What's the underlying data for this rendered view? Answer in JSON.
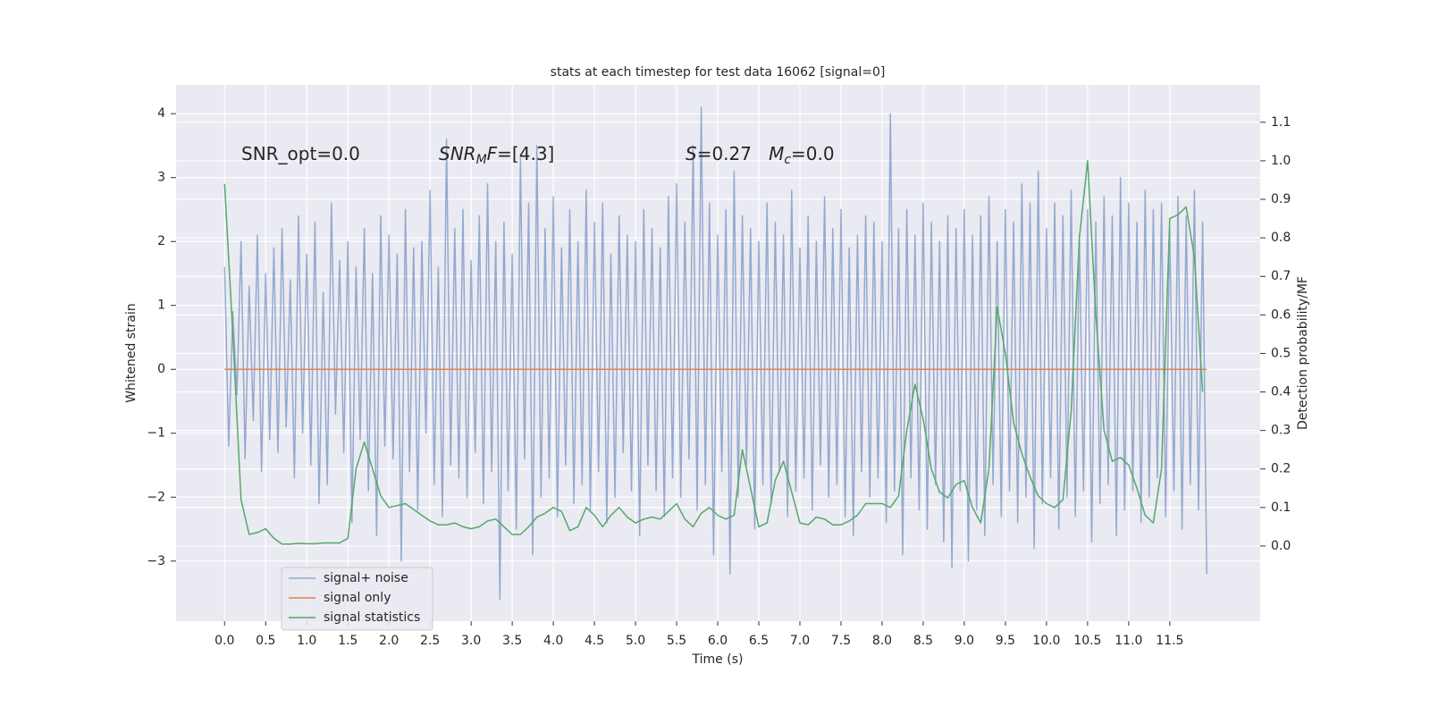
{
  "chart_data": {
    "type": "line",
    "title": "stats at each timestep for test data 16062 [signal=0]",
    "xlabel": "Time (s)",
    "ylabel": "Whitened strain",
    "y2label": "Detection probability/MF",
    "annotations": [
      [
        {
          "text": "SNR_opt=0.0"
        }
      ],
      [
        {
          "text": "SNR",
          "italic": true
        },
        {
          "text": "M",
          "italic": true,
          "sub": true
        },
        {
          "text": "F",
          "italic": true
        },
        {
          "text": "=[4.3]"
        }
      ],
      [
        {
          "text": "S",
          "italic": true
        },
        {
          "text": "=0.27   "
        },
        {
          "text": "M",
          "italic": true
        },
        {
          "text": "c",
          "italic": true,
          "sub": true
        },
        {
          "text": "=0.0"
        }
      ]
    ],
    "xlim": [
      -0.59,
      12.6
    ],
    "ylim": [
      -3.94,
      4.45
    ],
    "y2lim": [
      -0.195,
      1.197
    ],
    "xticks": [
      {
        "value": 0,
        "label": "0.0"
      },
      0.5,
      {
        "value": 1,
        "label": "1.0"
      },
      1.5,
      {
        "value": 2,
        "label": "2.0"
      },
      2.5,
      {
        "value": 3,
        "label": "3.0"
      },
      3.5,
      {
        "value": 4,
        "label": "4.0"
      },
      4.5,
      {
        "value": 5,
        "label": "5.0"
      },
      5.5,
      {
        "value": 6,
        "label": "6.0"
      },
      6.5,
      {
        "value": 7,
        "label": "7.0"
      },
      7.5,
      {
        "value": 8,
        "label": "8.0"
      },
      8.5,
      {
        "value": 9,
        "label": "9.0"
      },
      9.5,
      {
        "value": 10,
        "label": "10.0"
      },
      10.5,
      {
        "value": 11,
        "label": "11.0"
      },
      11.5
    ],
    "yticks": [
      {
        "value": -3,
        "label": "−3"
      },
      {
        "value": -2,
        "label": "−2"
      },
      {
        "value": -1,
        "label": "−1"
      },
      0,
      1,
      2,
      3,
      4
    ],
    "y2ticks": [
      {
        "value": 0,
        "label": "0.0"
      },
      0.1,
      0.2,
      0.3,
      0.4,
      0.5,
      0.6,
      0.7,
      0.8,
      0.9,
      {
        "value": 1,
        "label": "1.0"
      },
      1.1
    ],
    "grid": true,
    "legend": "lower left",
    "series": [
      {
        "name": "signal+ noise",
        "color": "#4c72b0",
        "alpha": 0.55,
        "axis": "y",
        "x": [
          0,
          0.05,
          0.1,
          0.15,
          0.2,
          0.25,
          0.3,
          0.35,
          0.4,
          0.45,
          0.5,
          0.55,
          0.6,
          0.65,
          0.7,
          0.75,
          0.8,
          0.85,
          0.9,
          0.95,
          1,
          1.05,
          1.1,
          1.15,
          1.2,
          1.25,
          1.3,
          1.35,
          1.4,
          1.45,
          1.5,
          1.55,
          1.6,
          1.65,
          1.7,
          1.75,
          1.8,
          1.85,
          1.9,
          1.95,
          2,
          2.05,
          2.1,
          2.15,
          2.2,
          2.25,
          2.3,
          2.35,
          2.4,
          2.45,
          2.5,
          2.55,
          2.6,
          2.65,
          2.7,
          2.75,
          2.8,
          2.85,
          2.9,
          2.95,
          3,
          3.05,
          3.1,
          3.15,
          3.2,
          3.25,
          3.3,
          3.35,
          3.4,
          3.45,
          3.5,
          3.55,
          3.6,
          3.65,
          3.7,
          3.75,
          3.8,
          3.85,
          3.9,
          3.95,
          4,
          4.05,
          4.1,
          4.15,
          4.2,
          4.25,
          4.3,
          4.35,
          4.4,
          4.45,
          4.5,
          4.55,
          4.6,
          4.65,
          4.7,
          4.75,
          4.8,
          4.85,
          4.9,
          4.95,
          5,
          5.05,
          5.1,
          5.15,
          5.2,
          5.25,
          5.3,
          5.35,
          5.4,
          5.45,
          5.5,
          5.55,
          5.6,
          5.65,
          5.7,
          5.75,
          5.8,
          5.85,
          5.9,
          5.95,
          6,
          6.05,
          6.1,
          6.15,
          6.2,
          6.25,
          6.3,
          6.35,
          6.4,
          6.45,
          6.5,
          6.55,
          6.6,
          6.65,
          6.7,
          6.75,
          6.8,
          6.85,
          6.9,
          6.95,
          7,
          7.05,
          7.1,
          7.15,
          7.2,
          7.25,
          7.3,
          7.35,
          7.4,
          7.45,
          7.5,
          7.55,
          7.6,
          7.65,
          7.7,
          7.75,
          7.8,
          7.85,
          7.9,
          7.95,
          8,
          8.05,
          8.1,
          8.15,
          8.2,
          8.25,
          8.3,
          8.35,
          8.4,
          8.45,
          8.5,
          8.55,
          8.6,
          8.65,
          8.7,
          8.75,
          8.8,
          8.85,
          8.9,
          8.95,
          9,
          9.05,
          9.1,
          9.15,
          9.2,
          9.25,
          9.3,
          9.35,
          9.4,
          9.45,
          9.5,
          9.55,
          9.6,
          9.65,
          9.7,
          9.75,
          9.8,
          9.85,
          9.9,
          9.95,
          10,
          10.05,
          10.1,
          10.15,
          10.2,
          10.25,
          10.3,
          10.35,
          10.4,
          10.45,
          10.5,
          10.55,
          10.6,
          10.65,
          10.7,
          10.75,
          10.8,
          10.85,
          10.9,
          10.95,
          11,
          11.05,
          11.1,
          11.15,
          11.2,
          11.25,
          11.3,
          11.35,
          11.4,
          11.45,
          11.5,
          11.55,
          11.6,
          11.65,
          11.7,
          11.75,
          11.8,
          11.85,
          11.9,
          11.95
        ],
        "values": [
          1.6,
          -1.2,
          0.9,
          -0.4,
          2.0,
          -1.4,
          1.3,
          -0.8,
          2.1,
          -1.6,
          1.5,
          -1.1,
          1.9,
          -1.3,
          2.2,
          -0.9,
          1.4,
          -1.7,
          2.4,
          -1.0,
          1.8,
          -1.5,
          2.3,
          -2.1,
          1.2,
          -1.8,
          2.6,
          -0.7,
          1.7,
          -1.3,
          2.0,
          -2.4,
          1.6,
          -1.1,
          2.2,
          -1.9,
          1.5,
          -2.6,
          2.4,
          -1.2,
          2.1,
          -1.4,
          1.8,
          -3.0,
          2.5,
          -1.6,
          1.9,
          -2.2,
          2.0,
          -1.0,
          2.8,
          -1.8,
          1.6,
          -2.3,
          3.6,
          -1.5,
          2.2,
          -1.7,
          2.5,
          -2.0,
          1.7,
          -1.3,
          2.4,
          -2.1,
          2.9,
          -1.6,
          2.0,
          -3.6,
          2.3,
          -1.9,
          1.8,
          -2.5,
          3.3,
          -1.4,
          2.6,
          -2.9,
          3.5,
          -2.0,
          2.2,
          -1.7,
          2.7,
          -2.3,
          1.9,
          -1.5,
          2.5,
          -2.1,
          2.0,
          -1.8,
          2.8,
          -2.2,
          2.3,
          -1.6,
          2.6,
          -2.4,
          1.8,
          -2.0,
          2.4,
          -1.3,
          2.1,
          -1.9,
          2.0,
          -2.6,
          2.5,
          -1.5,
          2.2,
          -1.9,
          1.9,
          -2.3,
          2.7,
          -1.7,
          2.9,
          -2.0,
          2.3,
          -1.4,
          3.5,
          -2.2,
          4.1,
          -1.8,
          2.6,
          -2.9,
          2.1,
          -1.6,
          2.5,
          -3.2,
          3.1,
          -2.0,
          2.4,
          -1.5,
          2.2,
          -2.5,
          2.0,
          -1.8,
          2.6,
          -2.1,
          2.3,
          -1.6,
          2.1,
          -2.3,
          2.8,
          -1.9,
          1.9,
          -1.7,
          2.4,
          -2.2,
          2.0,
          -1.5,
          2.7,
          -2.0,
          2.2,
          -1.8,
          2.5,
          -2.3,
          1.9,
          -2.6,
          2.1,
          -1.6,
          2.4,
          -2.0,
          2.3,
          -1.7,
          2.0,
          -2.4,
          4.0,
          -1.9,
          2.2,
          -2.9,
          2.5,
          -1.7,
          2.1,
          -2.2,
          2.6,
          -2.5,
          2.3,
          -1.8,
          2.0,
          -2.7,
          2.4,
          -3.1,
          2.2,
          -1.9,
          2.5,
          -3.0,
          2.1,
          -2.2,
          2.4,
          -2.6,
          2.7,
          -1.8,
          2.0,
          -2.3,
          2.5,
          -1.9,
          2.3,
          -2.4,
          2.9,
          -2.0,
          2.6,
          -2.8,
          3.1,
          -2.1,
          2.2,
          -1.7,
          2.6,
          -2.5,
          2.4,
          -2.0,
          2.8,
          -2.3,
          2.1,
          -1.9,
          2.5,
          -2.7,
          2.3,
          -2.1,
          2.7,
          -1.8,
          2.4,
          -2.6,
          3.0,
          -2.2,
          2.6,
          -1.9,
          2.3,
          -2.4,
          2.8,
          -2.0,
          2.5,
          -1.7,
          2.6,
          -2.3,
          2.2,
          -1.9,
          2.7,
          -2.5,
          2.4,
          -1.8,
          2.8,
          -2.2,
          2.3,
          -3.2
        ]
      },
      {
        "name": "signal only",
        "color": "#dd8452",
        "alpha": 1,
        "axis": "y",
        "x": [
          0,
          11.95
        ],
        "values": [
          0,
          0
        ]
      },
      {
        "name": "signal statistics",
        "color": "#55a868",
        "alpha": 1,
        "axis": "y2",
        "x": [
          0,
          0.1,
          0.2,
          0.3,
          0.4,
          0.5,
          0.6,
          0.7,
          0.8,
          0.9,
          1,
          1.1,
          1.2,
          1.3,
          1.4,
          1.5,
          1.6,
          1.7,
          1.8,
          1.9,
          2,
          2.1,
          2.2,
          2.3,
          2.4,
          2.5,
          2.6,
          2.7,
          2.8,
          2.9,
          3,
          3.1,
          3.2,
          3.3,
          3.4,
          3.5,
          3.6,
          3.7,
          3.8,
          3.9,
          4,
          4.1,
          4.2,
          4.3,
          4.4,
          4.5,
          4.6,
          4.7,
          4.8,
          4.9,
          5,
          5.1,
          5.2,
          5.3,
          5.4,
          5.5,
          5.6,
          5.7,
          5.8,
          5.9,
          6,
          6.1,
          6.2,
          6.3,
          6.4,
          6.5,
          6.6,
          6.7,
          6.8,
          6.9,
          7,
          7.1,
          7.2,
          7.3,
          7.4,
          7.5,
          7.6,
          7.7,
          7.8,
          7.9,
          8,
          8.1,
          8.2,
          8.3,
          8.4,
          8.5,
          8.6,
          8.7,
          8.8,
          8.9,
          9,
          9.1,
          9.2,
          9.3,
          9.4,
          9.5,
          9.6,
          9.7,
          9.8,
          9.9,
          10,
          10.1,
          10.2,
          10.3,
          10.4,
          10.5,
          10.6,
          10.7,
          10.8,
          10.9,
          11,
          11.1,
          11.2,
          11.3,
          11.4,
          11.5,
          11.6,
          11.7,
          11.8,
          11.9
        ],
        "values": [
          0.94,
          0.55,
          0.12,
          0.03,
          0.035,
          0.045,
          0.02,
          0.005,
          0.005,
          0.007,
          0.006,
          0.006,
          0.008,
          0.008,
          0.008,
          0.02,
          0.2,
          0.27,
          0.2,
          0.13,
          0.1,
          0.105,
          0.11,
          0.095,
          0.08,
          0.065,
          0.055,
          0.055,
          0.06,
          0.05,
          0.045,
          0.05,
          0.065,
          0.07,
          0.05,
          0.03,
          0.03,
          0.05,
          0.075,
          0.085,
          0.1,
          0.09,
          0.04,
          0.05,
          0.1,
          0.08,
          0.05,
          0.08,
          0.1,
          0.075,
          0.06,
          0.07,
          0.075,
          0.07,
          0.09,
          0.11,
          0.07,
          0.05,
          0.085,
          0.1,
          0.08,
          0.07,
          0.08,
          0.25,
          0.15,
          0.05,
          0.06,
          0.17,
          0.22,
          0.14,
          0.06,
          0.055,
          0.075,
          0.07,
          0.055,
          0.055,
          0.065,
          0.08,
          0.11,
          0.11,
          0.11,
          0.1,
          0.13,
          0.3,
          0.42,
          0.33,
          0.2,
          0.14,
          0.125,
          0.16,
          0.17,
          0.1,
          0.06,
          0.2,
          0.62,
          0.5,
          0.32,
          0.24,
          0.18,
          0.13,
          0.11,
          0.1,
          0.12,
          0.35,
          0.8,
          1.0,
          0.6,
          0.3,
          0.22,
          0.23,
          0.21,
          0.15,
          0.08,
          0.06,
          0.2,
          0.85,
          0.86,
          0.88,
          0.75,
          0.4
        ]
      }
    ]
  }
}
